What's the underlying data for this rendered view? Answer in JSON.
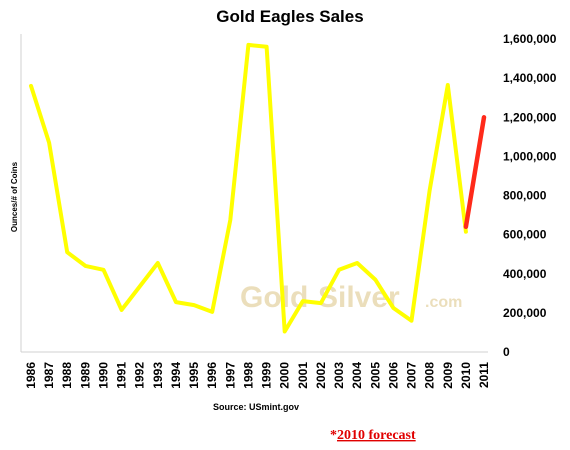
{
  "chart_data": {
    "type": "line",
    "title": "Gold Eagles Sales",
    "ylabel": "Ounces/# of Coins",
    "source": "Source: USmint.gov",
    "footnote_marker": "*",
    "footnote_text": "2010 forecast",
    "watermark": {
      "left": "Gold",
      "right": "Silver",
      "suffix": ".com"
    },
    "x": [
      "1986",
      "1987",
      "1988",
      "1989",
      "1990",
      "1991",
      "1992",
      "1993",
      "1994",
      "1995",
      "1996",
      "1997",
      "1998",
      "1999",
      "2000",
      "2001",
      "2002",
      "2003",
      "2004",
      "2005",
      "2006",
      "2007",
      "2008",
      "2009",
      "2010",
      "2011"
    ],
    "ylim": [
      0,
      1600000
    ],
    "yticks": [
      "0",
      "200,000",
      "400,000",
      "600,000",
      "800,000",
      "1,000,000",
      "1,200,000",
      "1,400,000",
      "1,600,000"
    ],
    "grid": false,
    "series": [
      {
        "color": "#ffff00",
        "values": [
          1360000,
          1070000,
          510000,
          440000,
          420000,
          215000,
          335000,
          455000,
          255000,
          240000,
          205000,
          675000,
          1570000,
          1560000,
          105000,
          260000,
          250000,
          420000,
          455000,
          370000,
          225000,
          160000,
          825000,
          1365000,
          615000,
          null
        ]
      },
      {
        "color": "#ff2a1a",
        "values": [
          null,
          null,
          null,
          null,
          null,
          null,
          null,
          null,
          null,
          null,
          null,
          null,
          null,
          null,
          null,
          null,
          null,
          null,
          null,
          null,
          null,
          null,
          null,
          null,
          640000,
          1200000
        ]
      }
    ]
  }
}
